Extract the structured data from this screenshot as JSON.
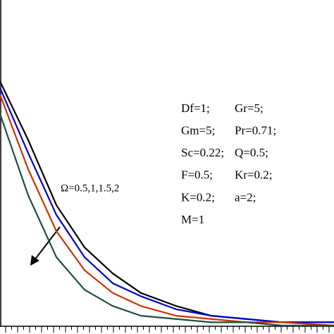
{
  "chart_data": {
    "type": "line",
    "x": [
      0,
      0.4,
      0.8,
      1.2,
      1.6,
      2,
      2.5,
      3,
      3.5,
      4,
      4.74
    ],
    "xlim": [
      0,
      4.74
    ],
    "ylim": [
      0,
      1
    ],
    "series": [
      {
        "color": "#000000",
        "values": [
          0.75,
          0.57,
          0.37,
          0.24,
          0.16,
          0.1,
          0.06,
          0.03,
          0.02,
          0.01,
          0.01
        ]
      },
      {
        "color": "#0000cc",
        "values": [
          0.73,
          0.53,
          0.34,
          0.21,
          0.13,
          0.09,
          0.05,
          0.03,
          0.02,
          0.01,
          0.01
        ]
      },
      {
        "color": "#cc3300",
        "values": [
          0.71,
          0.48,
          0.29,
          0.17,
          0.1,
          0.06,
          0.03,
          0.02,
          0.01,
          0.01,
          0
        ]
      },
      {
        "color": "#1f4e3d",
        "values": [
          0.65,
          0.4,
          0.21,
          0.11,
          0.06,
          0.03,
          0.02,
          0.01,
          0.01,
          0,
          0
        ]
      }
    ],
    "annotations": {
      "arrow_label": "Ω=0.5,1,1.5,2",
      "parameters": [
        [
          "Df=1;",
          "Gr=5;"
        ],
        [
          "Gm=5;",
          "Pr=0.71;"
        ],
        [
          "Sc=0.22;",
          "Q=0.5;"
        ],
        [
          "F=0.5;",
          "Kr=0.2;"
        ],
        [
          "K=0.2;",
          "a=2;"
        ],
        [
          "M=1"
        ]
      ]
    }
  }
}
